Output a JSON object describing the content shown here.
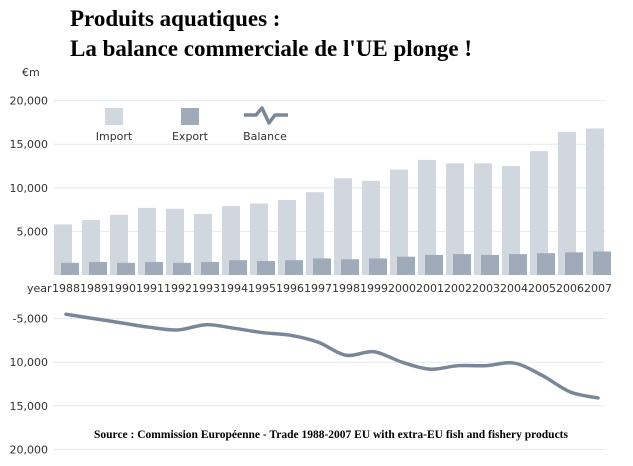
{
  "chart_data": {
    "type": "bar",
    "title": "Produits aquatiques :",
    "subtitle": "La balance commerciale de l'UE plonge !",
    "ylabel": "€m",
    "xlabel": "year",
    "categories": [
      "1988",
      "1989",
      "1990",
      "1991",
      "1992",
      "1993",
      "1994",
      "1995",
      "1996",
      "1997",
      "1998",
      "1999",
      "2000",
      "2001",
      "2002",
      "2003",
      "2004",
      "2005",
      "2006",
      "2007"
    ],
    "series": [
      {
        "name": "Import",
        "type": "bar",
        "color": "#d1d7de",
        "values": [
          5800,
          6300,
          6900,
          7700,
          7600,
          7000,
          7900,
          8200,
          8600,
          9500,
          11100,
          10800,
          12100,
          13200,
          12800,
          12800,
          12500,
          14200,
          16400,
          16800
        ]
      },
      {
        "name": "Export",
        "type": "bar",
        "color": "#a0abb9",
        "values": [
          1400,
          1500,
          1400,
          1500,
          1400,
          1500,
          1700,
          1600,
          1700,
          1900,
          1800,
          1900,
          2100,
          2300,
          2400,
          2300,
          2400,
          2500,
          2600,
          2700
        ]
      },
      {
        "name": "Balance",
        "type": "line",
        "color": "#7a8798",
        "values": [
          -4500,
          -5000,
          -5500,
          -6000,
          -6300,
          -5700,
          -6100,
          -6600,
          -6900,
          -7700,
          -9200,
          -8800,
          -10000,
          -10800,
          -10400,
          -10400,
          -10100,
          -11500,
          -13400,
          -14100
        ]
      }
    ],
    "yticks": [
      {
        "value": 20000,
        "label": "20,000"
      },
      {
        "value": 15000,
        "label": "15,000"
      },
      {
        "value": 10000,
        "label": "10,000"
      },
      {
        "value": 5000,
        "label": "5,000"
      },
      {
        "value": -5000,
        "label": "-5,000"
      },
      {
        "value": -10000,
        "label": "10,000"
      },
      {
        "value": -15000,
        "label": "15,000"
      },
      {
        "value": -20000,
        "label": "20,000"
      }
    ],
    "ylim": [
      -20000,
      20000
    ],
    "grid": true,
    "legend": "top-left",
    "source": "Source : Commission Européenne - Trade 1988-2007 EU with extra-EU fish and fishery products"
  }
}
